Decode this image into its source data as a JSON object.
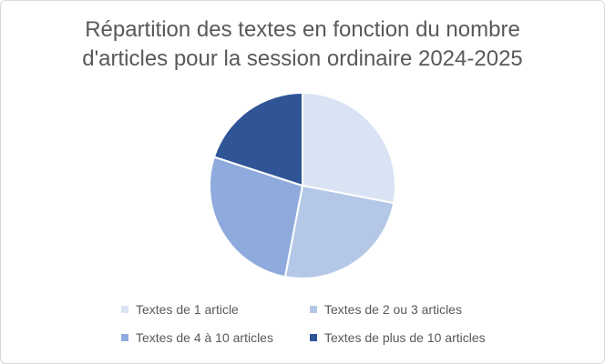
{
  "chart_data": {
    "type": "pie",
    "title_lines": [
      "Répartition des textes en fonction du nombre",
      "d'articles pour la session ordinaire 2024-2025"
    ],
    "slices": [
      {
        "label": "Textes de 1 article",
        "value": 28,
        "color": "#dae3f3"
      },
      {
        "label": "Textes de 2 ou 3 articles",
        "value": 25,
        "color": "#b4c7e7"
      },
      {
        "label": "Textes de 4 à 10 articles",
        "value": 27,
        "color": "#8faadc"
      },
      {
        "label": "Textes de plus de 10 articles",
        "value": 20,
        "color": "#2f5597"
      }
    ],
    "start_angle": "12 o'clock",
    "direction": "clockwise",
    "legend_position": "bottom"
  }
}
